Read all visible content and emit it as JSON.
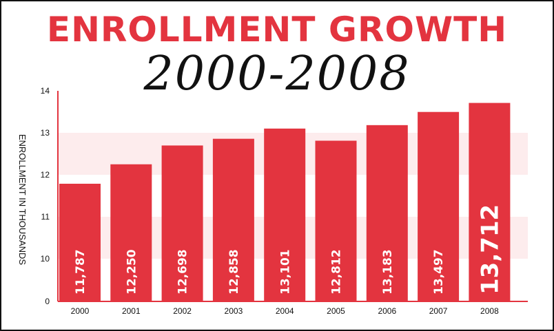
{
  "chart_data": {
    "type": "bar",
    "title": "ENROLLMENT GROWTH",
    "subtitle": "2000-2008",
    "ylabel": "ENROLLMENT IN THOUSANDS",
    "xlabel": "",
    "categories": [
      "2000",
      "2001",
      "2002",
      "2003",
      "2004",
      "2005",
      "2006",
      "2007",
      "2008"
    ],
    "values": [
      11787,
      12250,
      12698,
      12858,
      13101,
      12812,
      13183,
      13497,
      13712
    ],
    "data_labels": [
      "11,787",
      "12,250",
      "12,698",
      "12,858",
      "13,101",
      "12,812",
      "13,183",
      "13,497",
      "13,712"
    ],
    "y_ticks": [
      0,
      10,
      11,
      12,
      13,
      14
    ],
    "ylim": [
      9.5,
      14
    ],
    "axis_break": true,
    "grid": false,
    "bar_color": "#e3343f",
    "band_color": "#fdeced"
  }
}
